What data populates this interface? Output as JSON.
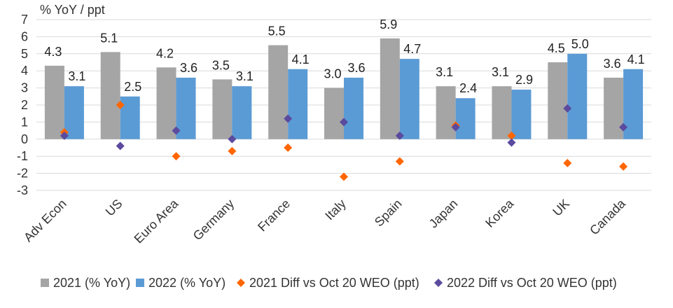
{
  "chart_data": {
    "type": "bar",
    "ylabel": "% YoY / ppt",
    "ylim": [
      -3,
      7
    ],
    "yticks": [
      -3,
      -2,
      -1,
      0,
      1,
      2,
      3,
      4,
      5,
      6,
      7
    ],
    "categories": [
      "Adv Econ",
      "US",
      "Euro Area",
      "Germany",
      "France",
      "Italy",
      "Spain",
      "Japan",
      "Korea",
      "UK",
      "Canada"
    ],
    "series": [
      {
        "name": "2021 (% YoY)",
        "kind": "bar",
        "color": "#a5a5a5",
        "values": [
          4.3,
          5.1,
          4.2,
          3.5,
          5.5,
          3.0,
          5.9,
          3.1,
          3.1,
          4.5,
          3.6
        ],
        "labels": [
          "4.3",
          "5.1",
          "4.2",
          "3.5",
          "5.5",
          "3.0",
          "5.9",
          "3.1",
          "3.1",
          "4.5",
          "3.6"
        ]
      },
      {
        "name": "2022 (% YoY)",
        "kind": "bar",
        "color": "#5b9bd5",
        "values": [
          3.1,
          2.5,
          3.6,
          3.1,
          4.1,
          3.6,
          4.7,
          2.4,
          2.9,
          5.0,
          4.1
        ],
        "labels": [
          "3.1",
          "2.5",
          "3.6",
          "3.1",
          "4.1",
          "3.6",
          "4.7",
          "2.4",
          "2.9",
          "5.0",
          "4.1"
        ]
      },
      {
        "name": "2021 Diff vs Oct 20 WEO (ppt)",
        "kind": "marker",
        "color": "#ff6600",
        "values": [
          0.4,
          2.0,
          -1.0,
          -0.7,
          -0.5,
          -2.2,
          -1.3,
          0.8,
          0.2,
          -1.4,
          -1.6
        ]
      },
      {
        "name": "2022 Diff vs Oct 20 WEO (ppt)",
        "kind": "marker",
        "color": "#5b4a9e",
        "values": [
          0.2,
          -0.4,
          0.5,
          0.0,
          1.2,
          1.0,
          0.2,
          0.7,
          -0.2,
          1.8,
          0.7
        ]
      }
    ],
    "legend_position": "bottom"
  }
}
